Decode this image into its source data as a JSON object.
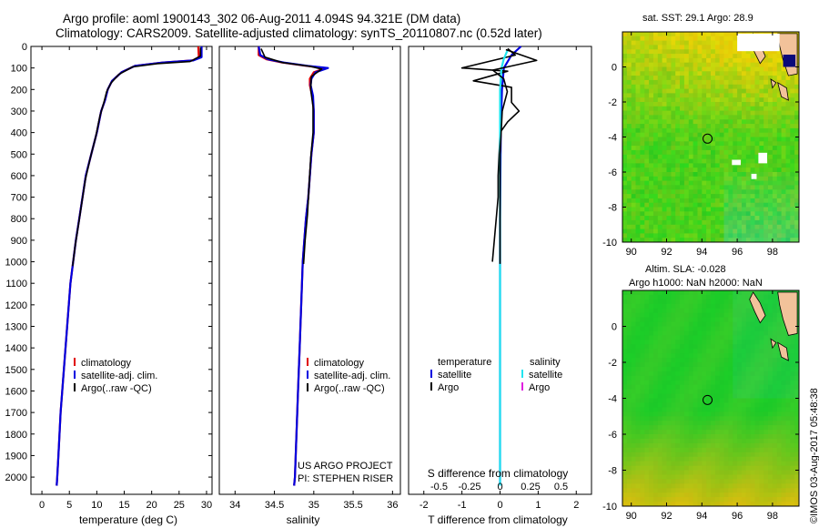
{
  "title": {
    "line1": "Argo profile: aoml 1900143_302 06-Aug-2011 4.094S 94.321E (DM data)",
    "line2": "Climatology: CARS2009. Satellite-adjusted climatology: synTS_20110807.nc (0.52d later)"
  },
  "map_titles": {
    "sst": "sat. SST: 29.1 Argo: 28.9",
    "sla_line1": "Altim. SLA: -0.028",
    "sla_line2": "Argo h1000: NaN h2000: NaN"
  },
  "stamp": "©IMOS 03-Aug-2017 05:48:38",
  "credits": {
    "line1": "US ARGO PROJECT",
    "line2": "PI: STEPHEN RISER"
  },
  "colors": {
    "climatology": "#e00000",
    "satellite": "#0000e0",
    "argo": "#000000",
    "salinity_satellite": "#22e5f0",
    "salinity_argo": "#e020e0",
    "land": "#f2c29a",
    "missing": "#ffffff"
  },
  "chart_data": [
    {
      "type": "line",
      "xlabel": "temperature (deg C)",
      "ylabel": "",
      "xlim": [
        -2,
        31
      ],
      "ylim": [
        2080,
        0
      ],
      "x_ticks": [
        0,
        5,
        10,
        15,
        20,
        25,
        30
      ],
      "y_ticks": [
        0,
        100,
        200,
        300,
        400,
        500,
        600,
        700,
        800,
        900,
        1000,
        1100,
        1200,
        1300,
        1400,
        1500,
        1600,
        1700,
        1800,
        1900,
        2000
      ],
      "legend": [
        "climatology",
        "satellite-adj. clim.",
        "Argo(..raw -QC)"
      ],
      "legend_position": "bottom-right",
      "series": [
        {
          "name": "climatology",
          "points": [
            [
              28.5,
              0
            ],
            [
              28.6,
              50
            ],
            [
              27.5,
              65
            ],
            [
              22,
              75
            ],
            [
              17,
              90
            ],
            [
              14.5,
              120
            ],
            [
              12.8,
              160
            ],
            [
              12,
              200
            ],
            [
              11.5,
              250
            ],
            [
              10.8,
              300
            ],
            [
              10,
              400
            ],
            [
              9,
              500
            ],
            [
              8,
              600
            ],
            [
              7.4,
              700
            ],
            [
              6.8,
              800
            ],
            [
              6.2,
              900
            ],
            [
              5.7,
              1000
            ],
            [
              5.2,
              1100
            ],
            [
              4.9,
              1200
            ],
            [
              4.6,
              1300
            ],
            [
              4.3,
              1400
            ],
            [
              4,
              1500
            ],
            [
              3.7,
              1600
            ],
            [
              3.4,
              1700
            ],
            [
              3.2,
              1800
            ],
            [
              3,
              1900
            ],
            [
              2.8,
              2000
            ],
            [
              2.7,
              2040
            ]
          ]
        },
        {
          "name": "satellite-adj. clim.",
          "points": [
            [
              29.1,
              0
            ],
            [
              29.1,
              50
            ],
            [
              27.6,
              65
            ],
            [
              22,
              75
            ],
            [
              17,
              90
            ],
            [
              14.5,
              120
            ],
            [
              12.8,
              160
            ],
            [
              12,
              200
            ],
            [
              11.5,
              250
            ],
            [
              10.8,
              300
            ],
            [
              10,
              400
            ],
            [
              9,
              500
            ],
            [
              8,
              600
            ],
            [
              7.4,
              700
            ],
            [
              6.8,
              800
            ],
            [
              6.2,
              900
            ],
            [
              5.7,
              1000
            ],
            [
              5.2,
              1100
            ],
            [
              4.9,
              1200
            ],
            [
              4.6,
              1300
            ],
            [
              4.3,
              1400
            ],
            [
              4,
              1500
            ],
            [
              3.7,
              1600
            ],
            [
              3.4,
              1700
            ],
            [
              3.2,
              1800
            ],
            [
              3,
              1900
            ],
            [
              2.8,
              2000
            ],
            [
              2.7,
              2040
            ]
          ]
        },
        {
          "name": "Argo(..raw -QC)",
          "points": [
            [
              28.9,
              5
            ],
            [
              28.9,
              45
            ],
            [
              27,
              70
            ],
            [
              21,
              80
            ],
            [
              16.5,
              95
            ],
            [
              14,
              130
            ],
            [
              12.6,
              170
            ],
            [
              11.8,
              210
            ],
            [
              11.3,
              260
            ],
            [
              10.6,
              320
            ],
            [
              9.8,
              420
            ],
            [
              8.8,
              520
            ],
            [
              7.9,
              620
            ],
            [
              7.3,
              720
            ],
            [
              6.7,
              820
            ],
            [
              6.1,
              920
            ],
            [
              5.6,
              1020
            ]
          ]
        }
      ]
    },
    {
      "type": "line",
      "xlabel": "salinity",
      "ylabel": "",
      "xlim": [
        33.8,
        36.1
      ],
      "ylim": [
        2080,
        0
      ],
      "x_ticks": [
        34,
        34.5,
        35,
        35.5,
        36
      ],
      "legend": [
        "climatology",
        "satellite-adj. clim.",
        "Argo(..raw -QC)"
      ],
      "legend_position": "bottom-right",
      "series": [
        {
          "name": "climatology",
          "points": [
            [
              34.3,
              0
            ],
            [
              34.3,
              40
            ],
            [
              34.4,
              60
            ],
            [
              34.6,
              75
            ],
            [
              34.9,
              90
            ],
            [
              35.15,
              100
            ],
            [
              35.0,
              120
            ],
            [
              34.95,
              150
            ],
            [
              34.95,
              180
            ],
            [
              34.98,
              230
            ],
            [
              35.0,
              300
            ],
            [
              35.0,
              400
            ],
            [
              34.97,
              500
            ],
            [
              34.95,
              600
            ],
            [
              34.93,
              700
            ],
            [
              34.9,
              800
            ],
            [
              34.88,
              900
            ],
            [
              34.86,
              1000
            ],
            [
              34.84,
              1200
            ],
            [
              34.82,
              1400
            ],
            [
              34.8,
              1600
            ],
            [
              34.78,
              1800
            ],
            [
              34.76,
              2000
            ],
            [
              34.75,
              2040
            ]
          ]
        },
        {
          "name": "satellite-adj. clim.",
          "points": [
            [
              34.3,
              0
            ],
            [
              34.32,
              40
            ],
            [
              34.42,
              60
            ],
            [
              34.62,
              75
            ],
            [
              34.92,
              90
            ],
            [
              35.18,
              100
            ],
            [
              35.02,
              120
            ],
            [
              34.97,
              150
            ],
            [
              34.96,
              180
            ],
            [
              34.99,
              230
            ],
            [
              35.0,
              300
            ],
            [
              35.0,
              400
            ],
            [
              34.97,
              500
            ],
            [
              34.95,
              600
            ],
            [
              34.93,
              700
            ],
            [
              34.9,
              800
            ],
            [
              34.88,
              900
            ],
            [
              34.86,
              1000
            ],
            [
              34.84,
              1200
            ],
            [
              34.82,
              1400
            ],
            [
              34.8,
              1600
            ],
            [
              34.78,
              1800
            ],
            [
              34.76,
              2000
            ],
            [
              34.75,
              2040
            ]
          ]
        },
        {
          "name": "Argo(..raw -QC)",
          "points": [
            [
              34.33,
              10
            ],
            [
              34.38,
              50
            ],
            [
              34.6,
              75
            ],
            [
              34.95,
              92
            ],
            [
              35.1,
              105
            ],
            [
              34.97,
              140
            ],
            [
              34.96,
              200
            ],
            [
              34.99,
              280
            ],
            [
              34.99,
              400
            ],
            [
              34.96,
              520
            ],
            [
              34.94,
              650
            ],
            [
              34.92,
              780
            ],
            [
              34.89,
              900
            ],
            [
              34.87,
              1010
            ]
          ]
        }
      ]
    },
    {
      "type": "line",
      "xlabel": "T difference from climatology",
      "x2label": "S difference from climatology",
      "ylabel": "",
      "xlim": [
        -2.4,
        2.4
      ],
      "ylim": [
        2080,
        0
      ],
      "x_ticks": [
        -2,
        -1,
        0,
        1,
        2
      ],
      "x2_ticks": [
        -0.5,
        -0.25,
        0,
        0.25,
        0.5
      ],
      "legend": [
        "temperature",
        "satellite",
        "Argo",
        "salinity",
        "satellite",
        "Argo"
      ],
      "legend_position": "bottom",
      "series": [
        {
          "name": "temperature satellite",
          "points": [
            [
              0.55,
              0
            ],
            [
              0.3,
              40
            ],
            [
              0.1,
              100
            ],
            [
              0.05,
              200
            ],
            [
              0.02,
              400
            ],
            [
              0.0,
              800
            ],
            [
              0.0,
              1200
            ],
            [
              0.0,
              1600
            ],
            [
              0.0,
              2040
            ]
          ]
        },
        {
          "name": "temperature Argo",
          "points": [
            [
              0.2,
              10
            ],
            [
              0.4,
              40
            ],
            [
              -1.0,
              100
            ],
            [
              0.2,
              115
            ],
            [
              -0.7,
              160
            ],
            [
              0.3,
              190
            ],
            [
              0.3,
              260
            ],
            [
              0.5,
              300
            ],
            [
              0.2,
              350
            ],
            [
              0.0,
              400
            ],
            [
              -0.05,
              600
            ],
            [
              -0.05,
              700
            ],
            [
              -0.1,
              800
            ],
            [
              -0.15,
              900
            ],
            [
              -0.2,
              1000
            ]
          ]
        },
        {
          "name": "salinity satellite",
          "points": [
            [
              0.1,
              20
            ],
            [
              0.05,
              60
            ],
            [
              0.02,
              100
            ],
            [
              0.0,
              200
            ],
            [
              0.0,
              600
            ],
            [
              0.0,
              1200
            ],
            [
              0.0,
              2040
            ]
          ]
        },
        {
          "name": "salinity Argo",
          "points": [
            [
              0.08,
              15
            ],
            [
              0.5,
              65
            ],
            [
              0.1,
              95
            ],
            [
              -0.1,
              110
            ],
            [
              0.05,
              150
            ],
            [
              0.1,
              210
            ],
            [
              0.03,
              300
            ],
            [
              0.0,
              500
            ],
            [
              0.0,
              1010
            ]
          ]
        }
      ]
    },
    {
      "type": "heatmap",
      "title": "sat. SST: 29.1 Argo: 28.9",
      "xlim": [
        89.5,
        99.5
      ],
      "ylim": [
        -10,
        2
      ],
      "x_ticks": [
        90,
        92,
        94,
        96,
        98
      ],
      "y_ticks": [
        -10,
        -8,
        -6,
        -4,
        -2,
        0
      ],
      "marker": {
        "lon": 94.321,
        "lat": -4.094
      }
    },
    {
      "type": "heatmap",
      "title": "Altim. SLA: -0.028",
      "subtitle": "Argo h1000: NaN h2000: NaN",
      "xlim": [
        89.5,
        99.5
      ],
      "ylim": [
        -10,
        2
      ],
      "x_ticks": [
        90,
        92,
        94,
        96,
        98
      ],
      "y_ticks": [
        -10,
        -8,
        -6,
        -4,
        -2,
        0
      ],
      "marker": {
        "lon": 94.321,
        "lat": -4.094
      }
    }
  ]
}
